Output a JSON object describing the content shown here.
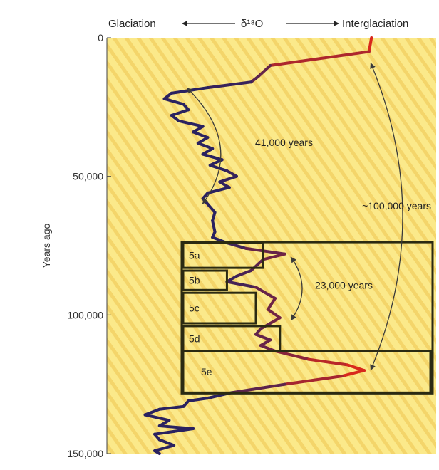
{
  "chart_data": {
    "type": "line",
    "title": "",
    "x_label_left": "Glaciation",
    "x_label_middle": "δ¹⁸O",
    "x_label_right": "Interglaciation",
    "y_label": "Years ago",
    "y_ticks": [
      {
        "value": 0,
        "label": "0"
      },
      {
        "value": 50000,
        "label": "50,000"
      },
      {
        "value": 100000,
        "label": "100,000"
      },
      {
        "value": 150000,
        "label": "150,000"
      }
    ],
    "ylim": [
      0,
      150000
    ],
    "x_relative_range": [
      0,
      1
    ],
    "colors": {
      "background": "#fbe98a",
      "stripe": "#f4d56a",
      "glacial_line": "#2a2260",
      "interglacial_line": "#d8281c",
      "box_stroke": "#2b2a12",
      "arrow": "#3a3a3a"
    },
    "series": [
      {
        "points": [
          [
            0,
            0.98
          ],
          [
            5000,
            0.97
          ],
          [
            10000,
            0.56
          ],
          [
            14000,
            0.51
          ],
          [
            16000,
            0.48
          ],
          [
            18000,
            0.3
          ],
          [
            20000,
            0.15
          ],
          [
            22000,
            0.12
          ],
          [
            24000,
            0.2
          ],
          [
            26000,
            0.22
          ],
          [
            28000,
            0.15
          ],
          [
            30000,
            0.18
          ],
          [
            32000,
            0.28
          ],
          [
            34000,
            0.24
          ],
          [
            36000,
            0.3
          ],
          [
            38000,
            0.26
          ],
          [
            40000,
            0.32
          ],
          [
            42000,
            0.28
          ],
          [
            44000,
            0.36
          ],
          [
            46000,
            0.31
          ],
          [
            48000,
            0.38
          ],
          [
            50000,
            0.42
          ],
          [
            52000,
            0.35
          ],
          [
            54000,
            0.39
          ],
          [
            56000,
            0.3
          ],
          [
            58000,
            0.28
          ],
          [
            60000,
            0.3
          ],
          [
            63000,
            0.33
          ],
          [
            66000,
            0.32
          ],
          [
            70000,
            0.33
          ],
          [
            72000,
            0.32
          ],
          [
            74000,
            0.38
          ],
          [
            76000,
            0.46
          ],
          [
            78000,
            0.62
          ],
          [
            80000,
            0.53
          ],
          [
            84000,
            0.48
          ],
          [
            86000,
            0.42
          ],
          [
            88000,
            0.38
          ],
          [
            90000,
            0.5
          ],
          [
            94000,
            0.58
          ],
          [
            98000,
            0.55
          ],
          [
            101000,
            0.6
          ],
          [
            103000,
            0.56
          ],
          [
            105000,
            0.52
          ],
          [
            107000,
            0.5
          ],
          [
            109000,
            0.56
          ],
          [
            111000,
            0.52
          ],
          [
            113000,
            0.58
          ],
          [
            116000,
            0.72
          ],
          [
            118000,
            0.88
          ],
          [
            120000,
            0.95
          ],
          [
            122000,
            0.86
          ],
          [
            125000,
            0.62
          ],
          [
            128000,
            0.4
          ],
          [
            130000,
            0.3
          ],
          [
            131000,
            0.22
          ],
          [
            133000,
            0.2
          ],
          [
            134000,
            0.1
          ],
          [
            136000,
            0.04
          ],
          [
            138000,
            0.14
          ],
          [
            140000,
            0.1
          ],
          [
            141000,
            0.24
          ],
          [
            142000,
            0.16
          ],
          [
            143000,
            0.08
          ],
          [
            145000,
            0.1
          ],
          [
            147000,
            0.16
          ],
          [
            149000,
            0.08
          ],
          [
            150000,
            0.1
          ]
        ]
      }
    ],
    "stages": [
      {
        "label": "5a",
        "y_top": 74000,
        "y_bottom": 83000,
        "x_right": 0.53
      },
      {
        "label": "5b",
        "y_top": 84000,
        "y_bottom": 91000,
        "x_right": 0.38
      },
      {
        "label": "5c",
        "y_top": 92000,
        "y_bottom": 103000,
        "x_right": 0.5
      },
      {
        "label": "5d",
        "y_top": 104000,
        "y_bottom": 113000,
        "x_right": 0.6
      },
      {
        "label": "5e",
        "y_top": 113000,
        "y_bottom": 128000,
        "x_right": 1.0
      }
    ],
    "stage_group": {
      "y_top": 74000,
      "y_bottom": 128000
    },
    "annotations": [
      {
        "text": "41,000 years",
        "y_top": 18000,
        "y_bottom": 60000
      },
      {
        "text": "~100,000 years",
        "y_top": 9000,
        "y_bottom": 120000
      },
      {
        "text": "23,000 years",
        "y_top": 79000,
        "y_bottom": 102000
      }
    ]
  }
}
